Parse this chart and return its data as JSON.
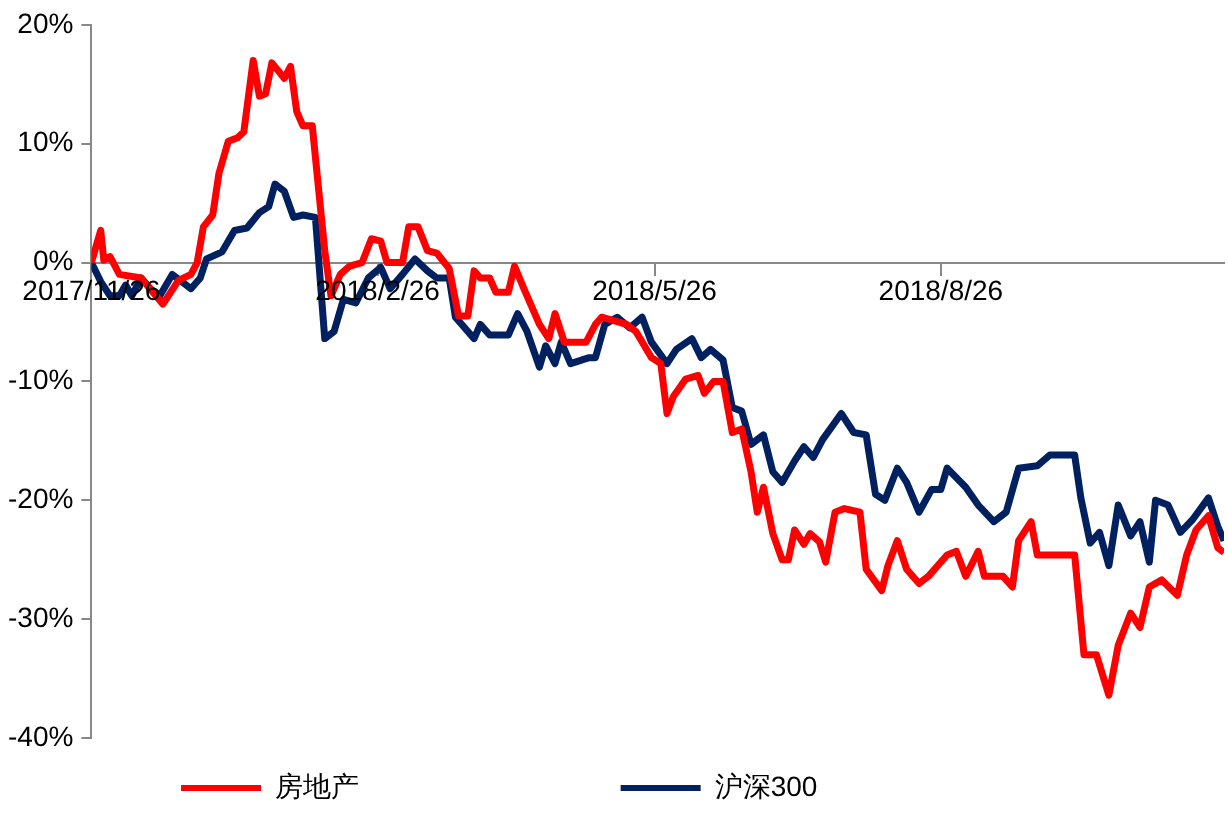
{
  "chart_data": {
    "type": "line",
    "xlim": [
      "2017-11-26",
      "2018-11-25"
    ],
    "xticks": [
      {
        "value": "2017-11-26",
        "label": "2017/11/26"
      },
      {
        "value": "2018-02-26",
        "label": "2018/2/26"
      },
      {
        "value": "2018-05-26",
        "label": "2018/5/26"
      },
      {
        "value": "2018-08-26",
        "label": "2018/8/26"
      }
    ],
    "ylim": [
      -40,
      20
    ],
    "yticks": [
      {
        "value": -40,
        "label": "-40%"
      },
      {
        "value": -30,
        "label": "-30%"
      },
      {
        "value": -20,
        "label": "-20%"
      },
      {
        "value": -10,
        "label": "-10%"
      },
      {
        "value": 0,
        "label": "0%"
      },
      {
        "value": 10,
        "label": "10%"
      },
      {
        "value": 20,
        "label": "20%"
      }
    ],
    "grid": false,
    "legend": "bottom",
    "line_style": "solid",
    "marker": "none",
    "series": [
      {
        "name": "房地产",
        "color": "#ff0000",
        "x": [
          "2017-11-26",
          "2017-11-29",
          "2017-11-30",
          "2017-12-02",
          "2017-12-05",
          "2017-12-12",
          "2017-12-19",
          "2017-12-24",
          "2017-12-28",
          "2017-12-30",
          "2018-01-01",
          "2018-01-04",
          "2018-01-06",
          "2018-01-09",
          "2018-01-12",
          "2018-01-14",
          "2018-01-17",
          "2018-01-19",
          "2018-01-21",
          "2018-01-23",
          "2018-01-27",
          "2018-01-29",
          "2018-01-31",
          "2018-02-02",
          "2018-02-05",
          "2018-02-09",
          "2018-02-11",
          "2018-02-14",
          "2018-02-17",
          "2018-02-21",
          "2018-02-24",
          "2018-02-27",
          "2018-03-01",
          "2018-03-06",
          "2018-03-08",
          "2018-03-11",
          "2018-03-14",
          "2018-03-17",
          "2018-03-21",
          "2018-03-24",
          "2018-03-27",
          "2018-03-29",
          "2018-03-31",
          "2018-04-03",
          "2018-04-05",
          "2018-04-09",
          "2018-04-11",
          "2018-04-14",
          "2018-04-19",
          "2018-04-22",
          "2018-04-24",
          "2018-04-27",
          "2018-05-04",
          "2018-05-07",
          "2018-05-09",
          "2018-05-17",
          "2018-05-20",
          "2018-05-25",
          "2018-05-28",
          "2018-05-30",
          "2018-06-01",
          "2018-06-05",
          "2018-06-09",
          "2018-06-11",
          "2018-06-14",
          "2018-06-17",
          "2018-06-20",
          "2018-06-23",
          "2018-06-26",
          "2018-06-28",
          "2018-06-30",
          "2018-07-03",
          "2018-07-06",
          "2018-07-08",
          "2018-07-10",
          "2018-07-13",
          "2018-07-15",
          "2018-07-18",
          "2018-07-20",
          "2018-07-23",
          "2018-07-26",
          "2018-07-31",
          "2018-08-02",
          "2018-08-07",
          "2018-08-09",
          "2018-08-12",
          "2018-08-15",
          "2018-08-19",
          "2018-08-22",
          "2018-08-28",
          "2018-08-31",
          "2018-09-03",
          "2018-09-07",
          "2018-09-09",
          "2018-09-15",
          "2018-09-18",
          "2018-09-20",
          "2018-09-24",
          "2018-09-26",
          "2018-10-08",
          "2018-10-11",
          "2018-10-15",
          "2018-10-19",
          "2018-10-22",
          "2018-10-26",
          "2018-10-29",
          "2018-11-01",
          "2018-11-05",
          "2018-11-10",
          "2018-11-13",
          "2018-11-16",
          "2018-11-20",
          "2018-11-23",
          "2018-11-25"
        ],
        "values": [
          0,
          2.7,
          0.2,
          0.5,
          -1,
          -1.3,
          -3.5,
          -1.5,
          -1,
          0,
          3,
          4,
          7.5,
          10.2,
          10.5,
          11,
          17,
          14,
          14.2,
          16.8,
          15.5,
          16.5,
          12.7,
          11.5,
          11.5,
          1,
          -2.8,
          -1,
          -0.3,
          0,
          2,
          1.8,
          0,
          0,
          3,
          3,
          1,
          0.8,
          -0.5,
          -4.5,
          -4.5,
          -0.7,
          -1.3,
          -1.3,
          -2.5,
          -2.5,
          -0.3,
          -2.2,
          -5.2,
          -6.4,
          -4.3,
          -6.7,
          -6.7,
          -5.2,
          -4.6,
          -5.2,
          -5.8,
          -8,
          -8.5,
          -12.7,
          -11.3,
          -9.8,
          -9.5,
          -11,
          -10,
          -10,
          -14.3,
          -14,
          -17.6,
          -21,
          -18.9,
          -22.8,
          -25,
          -25,
          -22.5,
          -23.7,
          -22.8,
          -23.5,
          -25.2,
          -21,
          -20.7,
          -21,
          -25.8,
          -27.6,
          -25.5,
          -23.4,
          -25.8,
          -27,
          -26.4,
          -24.6,
          -24.3,
          -26.4,
          -24.3,
          -26.4,
          -26.4,
          -27.3,
          -23.4,
          -21.8,
          -24.6,
          -24.6,
          -33,
          -33,
          -36.4,
          -32.2,
          -29.5,
          -30.7,
          -27.3,
          -26.7,
          -28,
          -24.6,
          -22.5,
          -21.3,
          -24,
          -24.4
        ]
      },
      {
        "name": "沪深300",
        "color": "#002060",
        "x": [
          "2017-11-26",
          "2017-11-29",
          "2017-12-02",
          "2017-12-05",
          "2017-12-07",
          "2017-12-09",
          "2017-12-12",
          "2017-12-15",
          "2017-12-18",
          "2017-12-22",
          "2017-12-25",
          "2017-12-28",
          "2017-12-31",
          "2018-01-02",
          "2018-01-07",
          "2018-01-11",
          "2018-01-15",
          "2018-01-19",
          "2018-01-22",
          "2018-01-24",
          "2018-01-27",
          "2018-01-30",
          "2018-02-02",
          "2018-02-06",
          "2018-02-09",
          "2018-02-12",
          "2018-02-15",
          "2018-02-19",
          "2018-02-23",
          "2018-02-27",
          "2018-03-02",
          "2018-03-06",
          "2018-03-10",
          "2018-03-14",
          "2018-03-17",
          "2018-03-21",
          "2018-03-23",
          "2018-03-29",
          "2018-03-31",
          "2018-04-03",
          "2018-04-09",
          "2018-04-12",
          "2018-04-15",
          "2018-04-19",
          "2018-04-21",
          "2018-04-24",
          "2018-04-26",
          "2018-04-29",
          "2018-05-05",
          "2018-05-07",
          "2018-05-10",
          "2018-05-14",
          "2018-05-18",
          "2018-05-22",
          "2018-05-25",
          "2018-05-30",
          "2018-06-02",
          "2018-06-07",
          "2018-06-10",
          "2018-06-13",
          "2018-06-17",
          "2018-06-20",
          "2018-06-23",
          "2018-06-26",
          "2018-06-30",
          "2018-07-03",
          "2018-07-06",
          "2018-07-10",
          "2018-07-13",
          "2018-07-16",
          "2018-07-19",
          "2018-07-25",
          "2018-07-29",
          "2018-08-02",
          "2018-08-05",
          "2018-08-08",
          "2018-08-12",
          "2018-08-15",
          "2018-08-19",
          "2018-08-23",
          "2018-08-26",
          "2018-08-28",
          "2018-09-03",
          "2018-09-07",
          "2018-09-12",
          "2018-09-16",
          "2018-09-20",
          "2018-09-26",
          "2018-09-30",
          "2018-10-08",
          "2018-10-10",
          "2018-10-13",
          "2018-10-16",
          "2018-10-19",
          "2018-10-22",
          "2018-10-26",
          "2018-10-29",
          "2018-11-01",
          "2018-11-03",
          "2018-11-07",
          "2018-11-11",
          "2018-11-15",
          "2018-11-20",
          "2018-11-23",
          "2018-11-25"
        ],
        "values": [
          0,
          -1.6,
          -2.8,
          -2.8,
          -1.9,
          -2.8,
          -1.3,
          -2.2,
          -2.8,
          -1,
          -1.6,
          -2.2,
          -1.3,
          0.3,
          0.9,
          2.7,
          2.9,
          4.2,
          4.7,
          6.6,
          6,
          3.8,
          4,
          3.8,
          -6.4,
          -5.8,
          -3.1,
          -3.4,
          -1.3,
          -0.4,
          -2.2,
          -1,
          0.3,
          -0.7,
          -1.3,
          -1.3,
          -4.6,
          -6.4,
          -5.2,
          -6.1,
          -6.1,
          -4.3,
          -5.8,
          -8.8,
          -7,
          -8.5,
          -6.7,
          -8.5,
          -8,
          -8,
          -5.2,
          -4.6,
          -5.5,
          -4.6,
          -6.7,
          -8.5,
          -7.3,
          -6.4,
          -8,
          -7.3,
          -8.2,
          -12.2,
          -12.5,
          -15.3,
          -14.5,
          -17.6,
          -18.5,
          -16.7,
          -15.5,
          -16.4,
          -14.9,
          -12.7,
          -14.3,
          -14.5,
          -19.5,
          -20,
          -17.3,
          -18.5,
          -21,
          -19.1,
          -19.1,
          -17.3,
          -18.9,
          -20.4,
          -21.8,
          -21,
          -17.3,
          -17.1,
          -16.2,
          -16.2,
          -19.8,
          -23.6,
          -22.7,
          -25.5,
          -20.4,
          -23,
          -21.8,
          -25.2,
          -20,
          -20.4,
          -22.7,
          -21.6,
          -19.8,
          -22.2,
          -23.4
        ]
      }
    ]
  }
}
